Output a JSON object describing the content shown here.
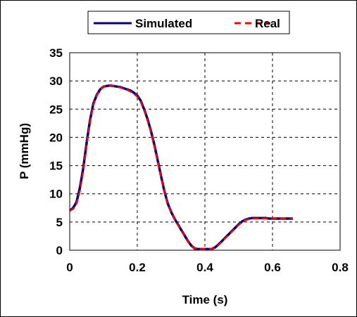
{
  "chart_data": {
    "type": "line",
    "title": "",
    "xlabel": "Time (s)",
    "ylabel": "P (mmHg)",
    "xlim": [
      0,
      0.8
    ],
    "ylim": [
      0,
      35
    ],
    "xticks": [
      "0",
      "0.2",
      "0.4",
      "0.6",
      "0.8"
    ],
    "yticks": [
      "0",
      "5",
      "10",
      "15",
      "20",
      "25",
      "30",
      "35"
    ],
    "grid": "dashed",
    "legend_position": "top",
    "series": [
      {
        "name": "Simulated",
        "color": "#000080",
        "style": "solid",
        "x": [
          0,
          0.01,
          0.02,
          0.03,
          0.04,
          0.05,
          0.06,
          0.07,
          0.08,
          0.09,
          0.1,
          0.11,
          0.12,
          0.13,
          0.14,
          0.15,
          0.16,
          0.17,
          0.18,
          0.19,
          0.2,
          0.21,
          0.22,
          0.23,
          0.24,
          0.25,
          0.26,
          0.27,
          0.28,
          0.29,
          0.3,
          0.31,
          0.32,
          0.33,
          0.34,
          0.35,
          0.36,
          0.37,
          0.38,
          0.39,
          0.4,
          0.41,
          0.42,
          0.43,
          0.44,
          0.45,
          0.46,
          0.47,
          0.48,
          0.49,
          0.5,
          0.51,
          0.52,
          0.53,
          0.54,
          0.55,
          0.56,
          0.57,
          0.58,
          0.59,
          0.6,
          0.61,
          0.62,
          0.63,
          0.64,
          0.65,
          0.66
        ],
        "y": [
          7.0,
          7.5,
          8.5,
          11.0,
          14.5,
          19.0,
          23.0,
          26.0,
          27.5,
          28.5,
          29.0,
          29.1,
          29.2,
          29.1,
          29.0,
          28.9,
          28.7,
          28.5,
          28.3,
          27.9,
          27.4,
          26.5,
          25.0,
          23.3,
          21.2,
          18.8,
          16.0,
          13.2,
          10.5,
          8.3,
          6.8,
          5.6,
          4.6,
          3.6,
          2.6,
          1.6,
          0.8,
          0.3,
          0.2,
          0.2,
          0.2,
          0.2,
          0.2,
          0.5,
          1.0,
          1.6,
          2.2,
          2.8,
          3.4,
          4.0,
          4.6,
          5.1,
          5.4,
          5.6,
          5.7,
          5.7,
          5.7,
          5.7,
          5.7,
          5.6,
          5.6,
          5.6,
          5.6,
          5.6,
          5.6,
          5.6,
          5.6
        ]
      },
      {
        "name": "Real",
        "color": "#ff0000",
        "style": "dashed",
        "x": [
          0,
          0.01,
          0.02,
          0.03,
          0.04,
          0.05,
          0.06,
          0.07,
          0.08,
          0.09,
          0.1,
          0.11,
          0.12,
          0.13,
          0.14,
          0.15,
          0.16,
          0.17,
          0.18,
          0.19,
          0.2,
          0.21,
          0.22,
          0.23,
          0.24,
          0.25,
          0.26,
          0.27,
          0.28,
          0.29,
          0.3,
          0.31,
          0.32,
          0.33,
          0.34,
          0.35,
          0.36,
          0.37,
          0.38,
          0.39,
          0.4,
          0.41,
          0.42,
          0.43,
          0.44,
          0.45,
          0.46,
          0.47,
          0.48,
          0.49,
          0.5,
          0.51,
          0.52,
          0.53,
          0.54,
          0.55,
          0.56,
          0.57,
          0.58,
          0.59,
          0.6,
          0.61,
          0.62,
          0.63,
          0.64,
          0.65,
          0.66
        ],
        "y": [
          7.0,
          7.3,
          8.2,
          10.5,
          14.0,
          18.5,
          22.8,
          25.8,
          27.4,
          28.4,
          29.0,
          29.2,
          29.2,
          29.1,
          29.0,
          28.8,
          28.6,
          28.4,
          28.1,
          27.7,
          27.2,
          26.3,
          24.8,
          23.0,
          21.0,
          18.5,
          15.8,
          13.0,
          10.4,
          8.2,
          6.7,
          5.5,
          4.5,
          3.5,
          2.5,
          1.5,
          0.7,
          0.3,
          0.2,
          0.2,
          0.2,
          0.2,
          0.2,
          0.4,
          0.9,
          1.5,
          2.1,
          2.7,
          3.3,
          3.9,
          4.5,
          5.0,
          5.3,
          5.5,
          5.6,
          5.6,
          5.6,
          5.6,
          5.6,
          5.6,
          5.6,
          5.6,
          5.6,
          5.6,
          5.6,
          5.7,
          5.7
        ]
      }
    ]
  }
}
